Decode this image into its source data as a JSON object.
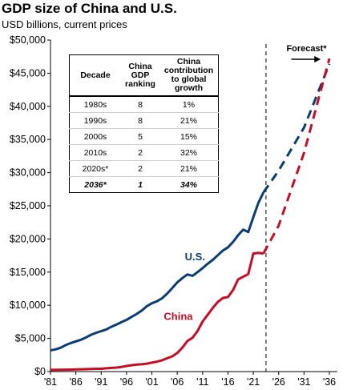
{
  "title": "GDP size of China and U.S.",
  "subtitle": "USD billions, current prices",
  "table": {
    "headers": [
      "Decade",
      "China GDP ranking",
      "China contribution to global growth"
    ],
    "rows": [
      [
        "1980s",
        "8",
        "1%"
      ],
      [
        "1990s",
        "8",
        "21%"
      ],
      [
        "2000s",
        "5",
        "15%"
      ],
      [
        "2010s",
        "2",
        "32%"
      ],
      [
        "2020s*",
        "2",
        "21%"
      ],
      [
        "2036*",
        "1",
        "34%"
      ]
    ]
  },
  "chart_data": {
    "type": "line",
    "ylim": [
      0,
      50000
    ],
    "xlim": [
      1981,
      2036
    ],
    "y_ticks": [
      "$0",
      "$5,000",
      "$10,000",
      "$15,000",
      "$20,000",
      "$25,000",
      "$30,000",
      "$35,000",
      "$40,000",
      "$45,000",
      "$50,000"
    ],
    "y_tick_values": [
      0,
      5000,
      10000,
      15000,
      20000,
      25000,
      30000,
      35000,
      40000,
      45000,
      50000
    ],
    "x_ticks": [
      "'81",
      "'86",
      "'91",
      "'96",
      "'01",
      "'06",
      "'11",
      "'16",
      "'21",
      "'26",
      "'31",
      "'36"
    ],
    "x_tick_values": [
      1981,
      1986,
      1991,
      1996,
      2001,
      2006,
      2011,
      2016,
      2021,
      2026,
      2031,
      2036
    ],
    "grid": false,
    "forecast_start": 2023.5,
    "forecast_label": "Forecast*",
    "series": [
      {
        "name": "U.S.",
        "color": "#0b3c73",
        "actual": [
          [
            1981,
            3200
          ],
          [
            1982,
            3350
          ],
          [
            1983,
            3600
          ],
          [
            1984,
            4000
          ],
          [
            1985,
            4300
          ],
          [
            1986,
            4550
          ],
          [
            1987,
            4800
          ],
          [
            1988,
            5150
          ],
          [
            1989,
            5550
          ],
          [
            1990,
            5850
          ],
          [
            1991,
            6100
          ],
          [
            1992,
            6350
          ],
          [
            1993,
            6750
          ],
          [
            1994,
            7100
          ],
          [
            1995,
            7450
          ],
          [
            1996,
            7800
          ],
          [
            1997,
            8250
          ],
          [
            1998,
            8700
          ],
          [
            1999,
            9200
          ],
          [
            2000,
            9850
          ],
          [
            2001,
            10300
          ],
          [
            2002,
            10600
          ],
          [
            2003,
            11050
          ],
          [
            2004,
            11750
          ],
          [
            2005,
            12600
          ],
          [
            2006,
            13450
          ],
          [
            2007,
            14100
          ],
          [
            2008,
            14650
          ],
          [
            2009,
            14450
          ],
          [
            2010,
            15000
          ],
          [
            2011,
            15600
          ],
          [
            2012,
            16250
          ],
          [
            2013,
            16850
          ],
          [
            2014,
            17550
          ],
          [
            2015,
            18250
          ],
          [
            2016,
            18750
          ],
          [
            2017,
            19550
          ],
          [
            2018,
            20550
          ],
          [
            2019,
            21400
          ],
          [
            2020,
            21050
          ],
          [
            2021,
            23300
          ],
          [
            2022,
            25450
          ],
          [
            2023,
            27000
          ]
        ],
        "forecast": [
          [
            2023,
            27000
          ],
          [
            2026,
            30300
          ],
          [
            2031,
            36800
          ],
          [
            2036,
            46400
          ]
        ]
      },
      {
        "name": "China",
        "color": "#c40e24",
        "actual": [
          [
            1981,
            250
          ],
          [
            1985,
            300
          ],
          [
            1989,
            400
          ],
          [
            1990,
            420
          ],
          [
            1991,
            420
          ],
          [
            1992,
            500
          ],
          [
            1993,
            550
          ],
          [
            1994,
            600
          ],
          [
            1995,
            700
          ],
          [
            1996,
            850
          ],
          [
            1997,
            950
          ],
          [
            1998,
            1050
          ],
          [
            1999,
            1100
          ],
          [
            2000,
            1200
          ],
          [
            2001,
            1350
          ],
          [
            2002,
            1500
          ],
          [
            2003,
            1700
          ],
          [
            2004,
            2000
          ],
          [
            2005,
            2300
          ],
          [
            2006,
            2800
          ],
          [
            2007,
            3600
          ],
          [
            2008,
            4600
          ],
          [
            2009,
            5100
          ],
          [
            2010,
            6100
          ],
          [
            2011,
            7550
          ],
          [
            2012,
            8550
          ],
          [
            2013,
            9600
          ],
          [
            2014,
            10500
          ],
          [
            2015,
            11100
          ],
          [
            2016,
            11250
          ],
          [
            2017,
            12300
          ],
          [
            2018,
            13900
          ],
          [
            2019,
            14300
          ],
          [
            2020,
            14700
          ],
          [
            2021,
            17800
          ],
          [
            2022,
            17900
          ],
          [
            2023,
            17800
          ]
        ],
        "forecast": [
          [
            2023,
            17800
          ],
          [
            2026,
            22000
          ],
          [
            2031,
            33000
          ],
          [
            2036,
            47200
          ]
        ]
      }
    ]
  }
}
